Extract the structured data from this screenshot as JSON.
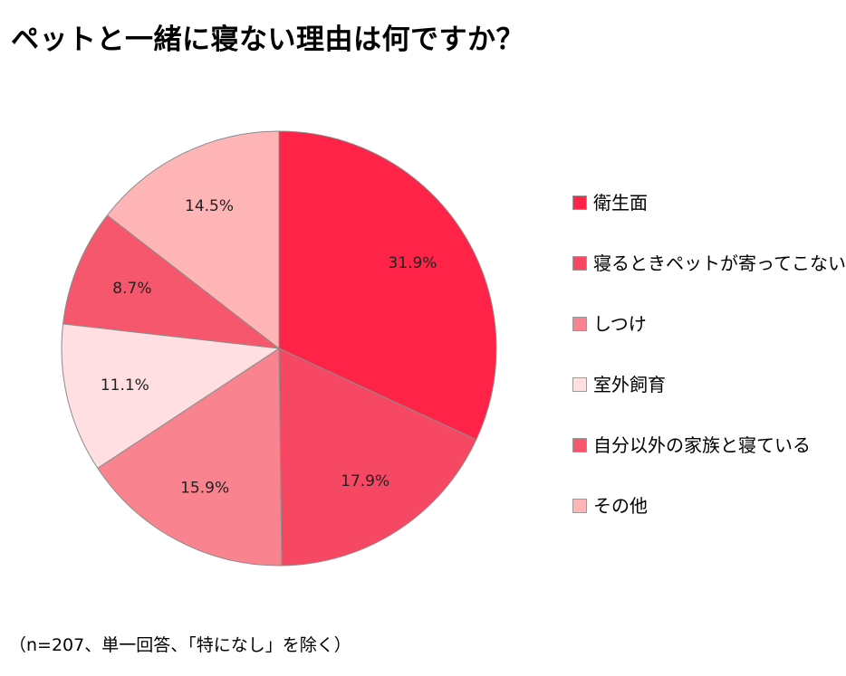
{
  "title": "ペットと一緒に寝ない理由は何ですか？",
  "footnote": "（n=207、単一回答、「特になし」を除く）",
  "chart_data": {
    "type": "pie",
    "title": "ペットと一緒に寝ない理由は何ですか？",
    "categories": [
      "衛生面",
      "寝るときペットが寄ってこない",
      "しつけ",
      "室外飼育",
      "自分以外の家族と寝ている",
      "その他"
    ],
    "values": [
      31.9,
      17.9,
      15.9,
      11.1,
      8.7,
      14.5
    ],
    "value_labels": [
      "31.9%",
      "17.9%",
      "15.9%",
      "11.1%",
      "8.7%",
      "14.5%"
    ],
    "colors": [
      "#ff2347",
      "#f64763",
      "#f9838f",
      "#ffdfe2",
      "#f7576c",
      "#ffb4b6"
    ],
    "start": "12 o'clock",
    "direction": "clockwise",
    "legend_position": "right"
  }
}
